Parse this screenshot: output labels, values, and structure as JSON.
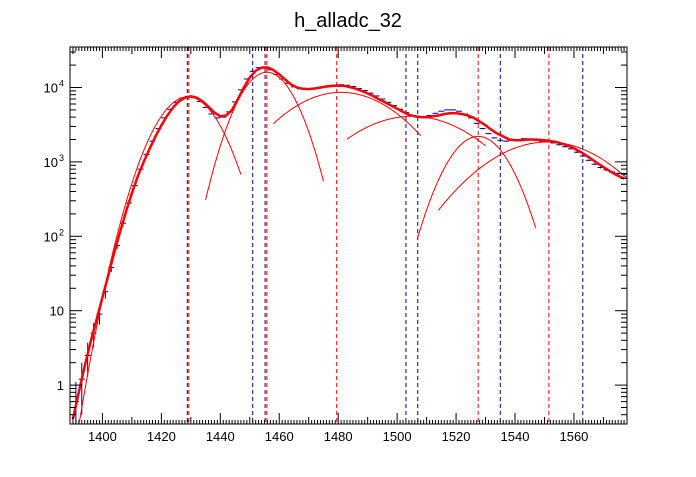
{
  "chart_data": {
    "type": "line",
    "title": "h_alladc_32",
    "xlabel": "",
    "ylabel": "",
    "xlim": [
      1389,
      1578
    ],
    "ylim": [
      0.3,
      35000
    ],
    "y_scale": "log",
    "grid": false,
    "legend": "none",
    "x_ticks": [
      1400,
      1420,
      1440,
      1460,
      1480,
      1500,
      1520,
      1540,
      1560
    ],
    "y_ticks": [
      {
        "value": 1,
        "label": "1"
      },
      {
        "value": 10,
        "label": "10"
      },
      {
        "value": 100,
        "label": "10",
        "exp": "2"
      },
      {
        "value": 1000,
        "label": "10",
        "exp": "3"
      },
      {
        "value": 10000,
        "label": "10",
        "exp": "4"
      }
    ],
    "colors": {
      "data": "#000099",
      "fit": "#ff0000",
      "frame": "#000000"
    },
    "data_points": {
      "x": [
        1391,
        1393,
        1395,
        1397,
        1399,
        1401,
        1403,
        1405,
        1407,
        1409,
        1411,
        1413,
        1415,
        1417,
        1419,
        1421,
        1423,
        1425,
        1427,
        1429,
        1431,
        1433,
        1435,
        1437,
        1439,
        1441,
        1443,
        1445,
        1447,
        1449,
        1451,
        1453,
        1455,
        1457,
        1459,
        1461,
        1463,
        1465,
        1467,
        1469,
        1471,
        1473,
        1475,
        1477,
        1479,
        1481,
        1483,
        1485,
        1487,
        1489,
        1491,
        1493,
        1495,
        1497,
        1499,
        1501,
        1503,
        1505,
        1507,
        1509,
        1511,
        1513,
        1515,
        1517,
        1519,
        1521,
        1523,
        1525,
        1527,
        1529,
        1531,
        1533,
        1535,
        1537,
        1539,
        1541,
        1543,
        1545,
        1547,
        1549,
        1551,
        1553,
        1555,
        1557,
        1559,
        1561,
        1563,
        1565,
        1567,
        1569,
        1571,
        1573,
        1575,
        1577
      ],
      "y": [
        0.6,
        1.2,
        2.5,
        5,
        9,
        18,
        38,
        75,
        150,
        280,
        480,
        800,
        1250,
        1900,
        2800,
        3900,
        5100,
        6300,
        7200,
        7600,
        7300,
        6500,
        5400,
        4400,
        3900,
        4000,
        4700,
        6400,
        9300,
        13000,
        16500,
        18500,
        18800,
        17300,
        15000,
        13000,
        11400,
        10200,
        9600,
        9400,
        9500,
        9800,
        10200,
        10600,
        10800,
        10900,
        10700,
        10300,
        9700,
        9100,
        8400,
        7700,
        7000,
        6300,
        5700,
        5100,
        4600,
        4200,
        4000,
        4000,
        4200,
        4500,
        4800,
        5000,
        5000,
        4800,
        4400,
        3900,
        3300,
        2800,
        2400,
        2100,
        1950,
        1900,
        1950,
        2000,
        2050,
        2000,
        1950,
        1900,
        1850,
        1800,
        1700,
        1600,
        1500,
        1350,
        1200,
        1050,
        930,
        840,
        780,
        730,
        700,
        680
      ],
      "err": [
        0.5,
        0.8,
        1.2,
        1.8,
        2.5,
        3.5,
        5,
        7,
        10,
        13,
        17,
        22,
        28,
        35,
        42,
        50,
        58,
        64,
        68,
        70,
        68,
        64,
        58,
        53,
        50,
        51,
        55,
        64,
        77,
        91,
        103,
        109,
        110,
        106,
        98,
        91,
        85,
        80,
        78,
        77,
        78,
        79,
        81,
        82,
        83,
        83,
        83,
        81,
        79,
        76,
        73,
        70,
        67,
        63,
        60,
        57,
        54,
        52,
        51,
        51,
        52,
        54,
        56,
        57,
        57,
        56,
        53,
        50,
        46,
        43,
        40,
        37,
        36,
        35,
        36,
        36,
        37,
        36,
        36,
        35,
        35,
        34,
        33,
        32,
        31,
        30,
        28,
        26,
        25,
        24,
        23,
        22,
        22,
        21
      ]
    },
    "fit_total": {
      "x": [
        1390,
        1392,
        1394,
        1396,
        1398,
        1400,
        1402,
        1404,
        1406,
        1408,
        1410,
        1412,
        1414,
        1416,
        1418,
        1420,
        1422,
        1424,
        1426,
        1428,
        1430,
        1432,
        1434,
        1436,
        1438,
        1440,
        1442,
        1444,
        1446,
        1448,
        1450,
        1452,
        1454,
        1456,
        1458,
        1460,
        1462,
        1464,
        1466,
        1468,
        1470,
        1472,
        1474,
        1476,
        1478,
        1480,
        1482,
        1484,
        1486,
        1488,
        1490,
        1492,
        1494,
        1496,
        1498,
        1500,
        1502,
        1504,
        1506,
        1508,
        1510,
        1512,
        1514,
        1516,
        1518,
        1520,
        1522,
        1524,
        1526,
        1528,
        1530,
        1532,
        1534,
        1536,
        1538,
        1540,
        1542,
        1544,
        1546,
        1548,
        1550,
        1552,
        1554,
        1556,
        1558,
        1560,
        1562,
        1564,
        1566,
        1568,
        1570,
        1572,
        1574,
        1576,
        1577
      ],
      "y": [
        0.35,
        0.8,
        1.8,
        3.8,
        7.5,
        15,
        30,
        60,
        115,
        215,
        380,
        640,
        1000,
        1500,
        2200,
        3100,
        4200,
        5400,
        6500,
        7300,
        7600,
        7300,
        6500,
        5500,
        4600,
        4100,
        4200,
        5000,
        7000,
        10000,
        13600,
        16800,
        18500,
        18600,
        17200,
        15000,
        12800,
        11000,
        10000,
        9600,
        9500,
        9700,
        10000,
        10300,
        10500,
        10600,
        10500,
        10100,
        9600,
        9000,
        8300,
        7600,
        6900,
        6300,
        5700,
        5200,
        4700,
        4300,
        4100,
        4000,
        4000,
        4100,
        4200,
        4400,
        4500,
        4500,
        4400,
        4200,
        3900,
        3500,
        3100,
        2700,
        2400,
        2200,
        2000,
        1950,
        1950,
        2000,
        2000,
        1980,
        1950,
        1900,
        1850,
        1750,
        1650,
        1520,
        1380,
        1230,
        1090,
        960,
        850,
        760,
        680,
        620,
        600
      ]
    },
    "fit_components": [
      {
        "mean": 1429,
        "sigma": 8.2,
        "amp": 7500,
        "x_range": [
          1390,
          1447
        ]
      },
      {
        "mean": 1455.8,
        "sigma": 7.4,
        "amp": 16000,
        "x_range": [
          1435,
          1475
        ]
      },
      {
        "mean": 1481,
        "sigma": 16.5,
        "amp": 8600,
        "x_range": [
          1458,
          1508
        ]
      },
      {
        "mean": 1505,
        "sigma": 18.5,
        "amp": 4100,
        "x_range": [
          1483,
          1530
        ]
      },
      {
        "mean": 1527.5,
        "sigma": 8.2,
        "amp": 2200,
        "x_range": [
          1507,
          1547
        ]
      },
      {
        "mean": 1551,
        "sigma": 18,
        "amp": 1850,
        "x_range": [
          1514,
          1578
        ]
      }
    ],
    "blue_markers": [
      1428.8,
      1451,
      1455.2,
      1503,
      1507,
      1535,
      1563
    ],
    "red_markers": [
      1429.3,
      1455.8,
      1479.5,
      1527.5,
      1551.5
    ]
  }
}
